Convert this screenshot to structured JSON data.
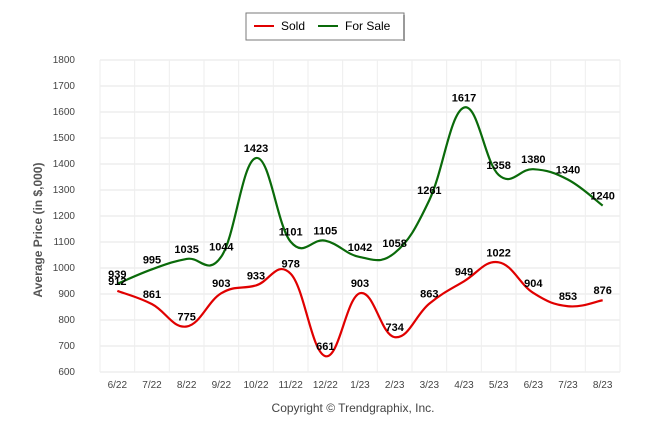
{
  "chart_data": {
    "type": "line",
    "title": "",
    "xlabel": "",
    "ylabel": "Average Price (in $,000)",
    "ylim": [
      600,
      1800
    ],
    "ytick_step": 100,
    "grid": true,
    "legend_position": "top-center",
    "categories": [
      "6/22",
      "7/22",
      "8/22",
      "9/22",
      "10/22",
      "11/22",
      "12/22",
      "1/23",
      "2/23",
      "3/23",
      "4/23",
      "5/23",
      "6/23",
      "7/23",
      "8/23"
    ],
    "series": [
      {
        "name": "Sold",
        "color": "#e00000",
        "values": [
          912,
          861,
          775,
          903,
          933,
          978,
          661,
          903,
          734,
          863,
          949,
          1022,
          904,
          853,
          876
        ]
      },
      {
        "name": "For Sale",
        "color": "#0a6a0a",
        "values": [
          939,
          995,
          1035,
          1044,
          1423,
          1101,
          1105,
          1042,
          1058,
          1261,
          1617,
          1358,
          1380,
          1340,
          1240
        ]
      }
    ]
  },
  "footer": {
    "copyright": "Copyright © Trendgraphix, Inc."
  }
}
